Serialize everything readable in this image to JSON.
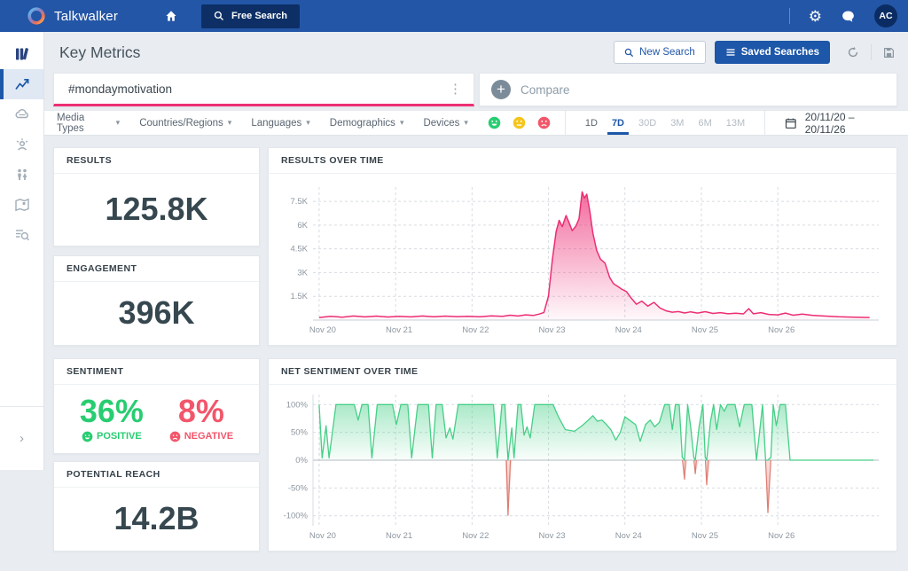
{
  "navbar": {
    "brand": "Talkwalker",
    "free_search_label": "Free Search",
    "avatar_initials": "AC"
  },
  "header": {
    "title": "Key Metrics",
    "new_search_label": "New Search",
    "saved_searches_label": "Saved Searches"
  },
  "search": {
    "query": "#mondaymotivation",
    "compare_label": "Compare",
    "plus_glyph": "+"
  },
  "filters": {
    "dropdowns": [
      "Media Types",
      "Countries/Regions",
      "Languages",
      "Demographics",
      "Devices"
    ],
    "sentiment_icons": [
      "positive",
      "neutral",
      "negative"
    ],
    "time_ranges": [
      "1D",
      "7D",
      "30D",
      "3M",
      "6M",
      "13M"
    ],
    "selected_range": "7D",
    "dimmed_ranges": [
      "30D",
      "3M",
      "6M",
      "13M"
    ],
    "date_range": "20/11/20 – 20/11/26"
  },
  "metrics": {
    "results": {
      "label": "RESULTS",
      "value": "125.8K"
    },
    "engagement": {
      "label": "ENGAGEMENT",
      "value": "396K"
    },
    "sentiment": {
      "label": "SENTIMENT",
      "positive_value": "36%",
      "positive_label": "POSITIVE",
      "negative_value": "8%",
      "negative_label": "NEGATIVE"
    },
    "potential_reach": {
      "label": "POTENTIAL REACH",
      "value": "14.2B"
    }
  },
  "colors": {
    "navbar_blue": "#2356a6",
    "accent_blue": "#1d57a9",
    "pink": "#ed2e74",
    "green": "#28cd71",
    "red": "#f2566b",
    "yellow": "#f5c51c",
    "grid": "#d7dce1",
    "axis": "#b5bbc2"
  },
  "chart_data": [
    {
      "id": "results_over_time",
      "type": "area",
      "title": "RESULTS OVER TIME",
      "xlabel": "",
      "ylabel": "",
      "xlim": [
        -0.08,
        7.32
      ],
      "ylim": [
        0,
        8400
      ],
      "x_tick_values": [
        0,
        1,
        2,
        3,
        4,
        5,
        6
      ],
      "x_tick_labels": [
        "Nov 20",
        "Nov 21",
        "Nov 22",
        "Nov 23",
        "Nov 24",
        "Nov 25",
        "Nov 26"
      ],
      "y_tick_values": [
        1500,
        3000,
        4500,
        6000,
        7500
      ],
      "y_tick_labels": [
        "1.5K",
        "3K",
        "4.5K",
        "6K",
        "7.5K"
      ],
      "grid": true,
      "series": [
        [
          0,
          160
        ],
        [
          0.15,
          240
        ],
        [
          0.3,
          185
        ],
        [
          0.45,
          255
        ],
        [
          0.6,
          200
        ],
        [
          0.75,
          250
        ],
        [
          0.9,
          195
        ],
        [
          1.05,
          240
        ],
        [
          1.2,
          200
        ],
        [
          1.35,
          255
        ],
        [
          1.5,
          210
        ],
        [
          1.65,
          250
        ],
        [
          1.8,
          220
        ],
        [
          1.95,
          240
        ],
        [
          2.1,
          215
        ],
        [
          2.25,
          270
        ],
        [
          2.4,
          235
        ],
        [
          2.5,
          310
        ],
        [
          2.6,
          255
        ],
        [
          2.7,
          330
        ],
        [
          2.8,
          290
        ],
        [
          2.88,
          380
        ],
        [
          2.94,
          480
        ],
        [
          3.0,
          1500
        ],
        [
          3.05,
          3800
        ],
        [
          3.1,
          5600
        ],
        [
          3.14,
          6300
        ],
        [
          3.18,
          5900
        ],
        [
          3.23,
          6600
        ],
        [
          3.27,
          6150
        ],
        [
          3.31,
          5650
        ],
        [
          3.36,
          5950
        ],
        [
          3.4,
          6400
        ],
        [
          3.44,
          8100
        ],
        [
          3.47,
          7700
        ],
        [
          3.5,
          7950
        ],
        [
          3.54,
          6900
        ],
        [
          3.58,
          5500
        ],
        [
          3.63,
          4400
        ],
        [
          3.68,
          3850
        ],
        [
          3.74,
          3600
        ],
        [
          3.8,
          2700
        ],
        [
          3.85,
          2300
        ],
        [
          3.9,
          2150
        ],
        [
          3.96,
          1950
        ],
        [
          4.02,
          1800
        ],
        [
          4.08,
          1400
        ],
        [
          4.15,
          1000
        ],
        [
          4.22,
          1200
        ],
        [
          4.3,
          880
        ],
        [
          4.38,
          1120
        ],
        [
          4.46,
          760
        ],
        [
          4.54,
          580
        ],
        [
          4.62,
          500
        ],
        [
          4.7,
          540
        ],
        [
          4.78,
          450
        ],
        [
          4.86,
          520
        ],
        [
          4.95,
          440
        ],
        [
          5.05,
          530
        ],
        [
          5.15,
          420
        ],
        [
          5.25,
          470
        ],
        [
          5.35,
          400
        ],
        [
          5.45,
          430
        ],
        [
          5.55,
          390
        ],
        [
          5.62,
          720
        ],
        [
          5.68,
          400
        ],
        [
          5.78,
          470
        ],
        [
          5.88,
          360
        ],
        [
          6.0,
          330
        ],
        [
          6.1,
          440
        ],
        [
          6.2,
          310
        ],
        [
          6.32,
          380
        ],
        [
          6.45,
          300
        ],
        [
          6.6,
          260
        ],
        [
          6.8,
          210
        ],
        [
          7.0,
          180
        ],
        [
          7.2,
          160
        ]
      ]
    },
    {
      "id": "net_sentiment_over_time",
      "type": "area_posneg",
      "title": "NET SENTIMENT OVER TIME",
      "xlabel": "",
      "ylabel": "",
      "xlim": [
        -0.08,
        7.32
      ],
      "ylim": [
        -118,
        118
      ],
      "x_tick_values": [
        0,
        1,
        2,
        3,
        4,
        5,
        6
      ],
      "x_tick_labels": [
        "Nov 20",
        "Nov 21",
        "Nov 22",
        "Nov 23",
        "Nov 24",
        "Nov 25",
        "Nov 26"
      ],
      "y_tick_values": [
        100,
        50,
        0,
        -50,
        -100
      ],
      "y_tick_labels": [
        "100%",
        "50%",
        "0%",
        "-50%",
        "-100%"
      ],
      "grid": true,
      "series": [
        [
          0,
          100
        ],
        [
          0.04,
          4
        ],
        [
          0.09,
          62
        ],
        [
          0.13,
          4
        ],
        [
          0.22,
          100
        ],
        [
          0.46,
          100
        ],
        [
          0.51,
          72
        ],
        [
          0.56,
          100
        ],
        [
          0.64,
          100
        ],
        [
          0.69,
          4
        ],
        [
          0.76,
          100
        ],
        [
          0.96,
          100
        ],
        [
          1.01,
          64
        ],
        [
          1.07,
          100
        ],
        [
          1.16,
          100
        ],
        [
          1.21,
          4
        ],
        [
          1.29,
          100
        ],
        [
          1.43,
          100
        ],
        [
          1.48,
          4
        ],
        [
          1.53,
          100
        ],
        [
          1.61,
          100
        ],
        [
          1.66,
          40
        ],
        [
          1.71,
          58
        ],
        [
          1.75,
          38
        ],
        [
          1.82,
          100
        ],
        [
          2.28,
          100
        ],
        [
          2.33,
          4
        ],
        [
          2.39,
          100
        ],
        [
          2.43,
          100
        ],
        [
          2.47,
          -100
        ],
        [
          2.52,
          58
        ],
        [
          2.55,
          4
        ],
        [
          2.6,
          100
        ],
        [
          2.64,
          100
        ],
        [
          2.68,
          45
        ],
        [
          2.72,
          60
        ],
        [
          2.76,
          40
        ],
        [
          2.82,
          100
        ],
        [
          3.06,
          100
        ],
        [
          3.13,
          78
        ],
        [
          3.22,
          55
        ],
        [
          3.34,
          52
        ],
        [
          3.44,
          62
        ],
        [
          3.52,
          72
        ],
        [
          3.58,
          80
        ],
        [
          3.64,
          70
        ],
        [
          3.7,
          72
        ],
        [
          3.76,
          64
        ],
        [
          3.82,
          54
        ],
        [
          3.88,
          36
        ],
        [
          3.94,
          50
        ],
        [
          4.0,
          78
        ],
        [
          4.06,
          72
        ],
        [
          4.14,
          64
        ],
        [
          4.2,
          34
        ],
        [
          4.27,
          64
        ],
        [
          4.33,
          72
        ],
        [
          4.39,
          60
        ],
        [
          4.45,
          68
        ],
        [
          4.52,
          100
        ],
        [
          4.58,
          100
        ],
        [
          4.62,
          55
        ],
        [
          4.66,
          100
        ],
        [
          4.71,
          100
        ],
        [
          4.75,
          5
        ],
        [
          4.78,
          -35
        ],
        [
          4.82,
          100
        ],
        [
          4.86,
          60
        ],
        [
          4.9,
          5
        ],
        [
          4.92,
          -25
        ],
        [
          4.97,
          60
        ],
        [
          5.02,
          100
        ],
        [
          5.05,
          5
        ],
        [
          5.07,
          -45
        ],
        [
          5.12,
          70
        ],
        [
          5.16,
          100
        ],
        [
          5.2,
          55
        ],
        [
          5.25,
          100
        ],
        [
          5.3,
          88
        ],
        [
          5.34,
          100
        ],
        [
          5.44,
          100
        ],
        [
          5.5,
          60
        ],
        [
          5.56,
          100
        ],
        [
          5.66,
          100
        ],
        [
          5.72,
          0
        ],
        [
          5.8,
          100
        ],
        [
          5.84,
          0
        ],
        [
          5.87,
          -95
        ],
        [
          5.91,
          5
        ],
        [
          5.94,
          100
        ],
        [
          5.98,
          62
        ],
        [
          6.03,
          100
        ],
        [
          6.1,
          100
        ],
        [
          6.16,
          0
        ],
        [
          6.4,
          0
        ],
        [
          6.8,
          0
        ],
        [
          7.25,
          0
        ]
      ]
    }
  ]
}
